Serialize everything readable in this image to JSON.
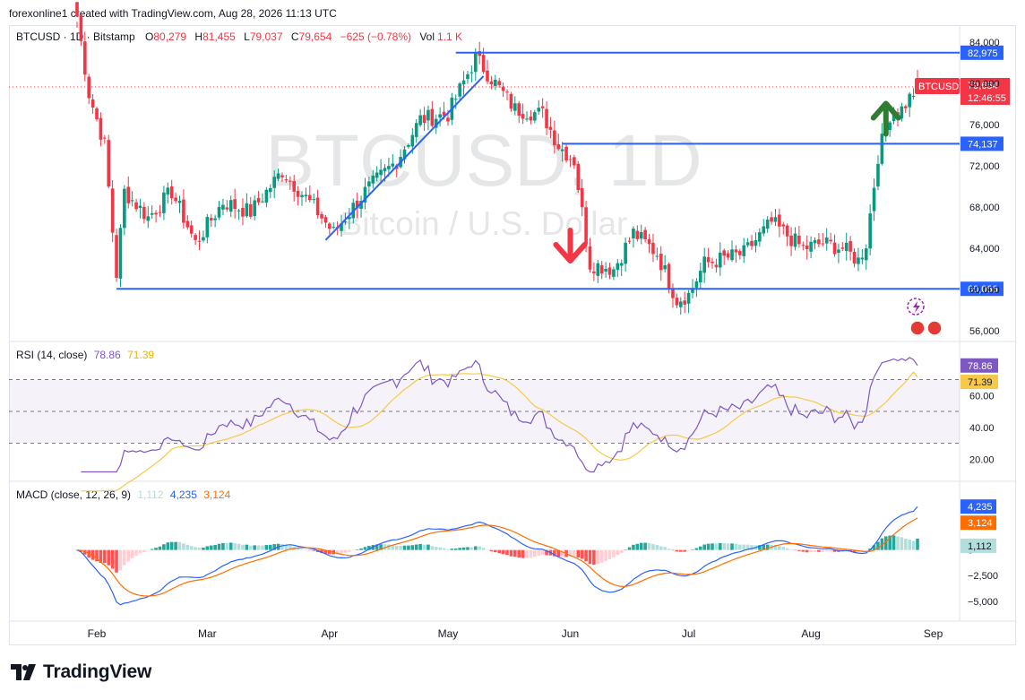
{
  "header": {
    "credit": "forexonline1 created with TradingView.com, Aug 28, 2026 11:13 UTC"
  },
  "legend": {
    "symbol": "BTCUSD · 1D · Bitstamp",
    "o_label": "O",
    "o": "80,279",
    "h_label": "H",
    "h": "81,455",
    "l_label": "L",
    "l": "79,037",
    "c_label": "C",
    "c": "79,654",
    "change": "−625 (−0.78%)",
    "vol_label": "Vol",
    "vol": "1.1 K"
  },
  "watermark": {
    "symbol": "BTCUSD, 1D",
    "description": "Bitcoin / U.S. Dollar"
  },
  "price_axis": {
    "ticks": [
      "84,000",
      "80,000",
      "76,000",
      "72,000",
      "68,000",
      "64,000",
      "60,000",
      "56,000"
    ]
  },
  "levels": [
    {
      "value": 82975,
      "label": "82,975"
    },
    {
      "value": 74137,
      "label": "74,137"
    },
    {
      "value": 60066,
      "label": "60,066"
    }
  ],
  "last_price": {
    "symbol": "BTCUSD",
    "price": "79,654",
    "countdown": "12:46:55"
  },
  "rsi": {
    "title": "RSI (14, close)",
    "value": "78.86",
    "ma": "71.39",
    "ticks": [
      "60.00",
      "40.00",
      "20.00"
    ]
  },
  "macd": {
    "title": "MACD (close, 12, 26, 9)",
    "hist": "1,112",
    "macd": "4,235",
    "signal": "3,124",
    "ticks": [
      "2,500",
      "0",
      "−2,500",
      "−5,000"
    ]
  },
  "x_axis": {
    "labels": [
      "Feb",
      "Mar",
      "Apr",
      "May",
      "Jun",
      "Jul",
      "Aug",
      "Sep"
    ]
  },
  "colors": {
    "up": "#089981",
    "down": "#f23645",
    "level": "#2962ff",
    "rsi": "#7e57c2",
    "rsi_ma": "#f7c948",
    "macd": "#2962ff",
    "signal": "#ff6d00",
    "arrow_up": "#2e7d32",
    "arrow_down": "#f23645"
  },
  "chart_data": {
    "type": "candlestick",
    "title": "BTCUSD · 1D · Bitstamp",
    "x_range": [
      "2026-01-27",
      "2026-08-28"
    ],
    "ylim": [
      56000,
      84000
    ],
    "anchors": [
      [
        "2026-01-27",
        86500
      ],
      [
        "2026-01-30",
        79000
      ],
      [
        "2026-02-03",
        74000
      ],
      [
        "2026-02-06",
        61500
      ],
      [
        "2026-02-08",
        69500
      ],
      [
        "2026-02-14",
        67000
      ],
      [
        "2026-02-20",
        69500
      ],
      [
        "2026-02-26",
        64500
      ],
      [
        "2026-03-05",
        68500
      ],
      [
        "2026-03-12",
        67500
      ],
      [
        "2026-03-20",
        71500
      ],
      [
        "2026-03-28",
        68000
      ],
      [
        "2026-04-02",
        65500
      ],
      [
        "2026-04-10",
        69500
      ],
      [
        "2026-04-18",
        72500
      ],
      [
        "2026-04-24",
        76500
      ],
      [
        "2026-05-01",
        77000
      ],
      [
        "2026-05-08",
        82500
      ],
      [
        "2026-05-12",
        80500
      ],
      [
        "2026-05-18",
        77500
      ],
      [
        "2026-05-25",
        77000
      ],
      [
        "2026-05-29",
        74000
      ],
      [
        "2026-06-02",
        72500
      ],
      [
        "2026-06-06",
        62500
      ],
      [
        "2026-06-12",
        62000
      ],
      [
        "2026-06-17",
        65500
      ],
      [
        "2026-06-23",
        63500
      ],
      [
        "2026-06-28",
        59000
      ],
      [
        "2026-07-01",
        59500
      ],
      [
        "2026-07-05",
        62500
      ],
      [
        "2026-07-15",
        63500
      ],
      [
        "2026-07-22",
        66500
      ],
      [
        "2026-07-30",
        64000
      ],
      [
        "2026-08-04",
        64500
      ],
      [
        "2026-08-09",
        64000
      ],
      [
        "2026-08-13",
        62800
      ],
      [
        "2026-08-15",
        64500
      ],
      [
        "2026-08-18",
        73000
      ],
      [
        "2026-08-21",
        77000
      ],
      [
        "2026-08-24",
        77500
      ],
      [
        "2026-08-28",
        79654
      ]
    ],
    "trendline": {
      "from": [
        "2026-03-31",
        64800
      ],
      "to": [
        "2026-05-10",
        80700
      ]
    },
    "horizontal_levels": [
      {
        "value": 82975,
        "from": "2026-05-03"
      },
      {
        "value": 74137,
        "from": "2026-05-30"
      },
      {
        "value": 60066,
        "from": "2026-02-06"
      }
    ],
    "arrows": [
      {
        "direction": "down",
        "date": "2026-06-01",
        "price": 64000
      },
      {
        "direction": "up",
        "date": "2026-08-20",
        "price": 77000
      }
    ],
    "rsi": {
      "ylim": [
        10,
        90
      ],
      "bands": [
        30,
        70
      ],
      "mid": 50,
      "last": 78.86,
      "ma_last": 71.39
    },
    "macd": {
      "ylim": [
        -6500,
        6000
      ],
      "last": 4235,
      "signal_last": 3124,
      "hist_last": 1112
    }
  }
}
